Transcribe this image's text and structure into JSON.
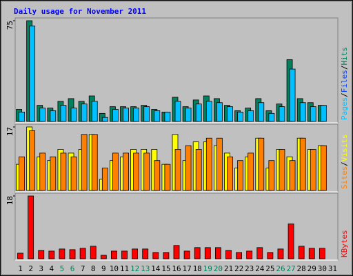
{
  "title": "Daily usage for November 2011",
  "legend_separator": "/",
  "chart_data": [
    {
      "type": "bar",
      "ylim": [
        0,
        75
      ],
      "yticks": [
        75
      ],
      "series": [
        {
          "name": "Hits",
          "color": "#00805c",
          "values": [
            9,
            75,
            12,
            10,
            15,
            17,
            15,
            19,
            6,
            11,
            11,
            11,
            12,
            9,
            7,
            18,
            11,
            16,
            19,
            17,
            12,
            8,
            10,
            17,
            8,
            13,
            46,
            17,
            14,
            12,
            null
          ]
        },
        {
          "name": "Files",
          "color": "#0040ff",
          "values": [
            null,
            null,
            null,
            null,
            null,
            null,
            null,
            null,
            null,
            null,
            null,
            null,
            null,
            null,
            null,
            null,
            null,
            null,
            null,
            null,
            null,
            null,
            null,
            null,
            null,
            null,
            null,
            null,
            null,
            null,
            null
          ]
        },
        {
          "name": "Pages",
          "color": "#00c0ff",
          "values": [
            7,
            71,
            10,
            8,
            12,
            10,
            13,
            15,
            3,
            9,
            10,
            10,
            11,
            8,
            7,
            15,
            10,
            13,
            15,
            14,
            11,
            7,
            8,
            14,
            6,
            11,
            39,
            14,
            11,
            12,
            null
          ]
        }
      ]
    },
    {
      "type": "bar",
      "ylim": [
        0,
        17
      ],
      "yticks": [
        17
      ],
      "series": [
        {
          "name": "Visits",
          "color": "#ffff00",
          "values": [
            7,
            17,
            9,
            8,
            11,
            10,
            11,
            15,
            3,
            8,
            9,
            11,
            11,
            11,
            7,
            15,
            8,
            13,
            13,
            12,
            10,
            6,
            9,
            14,
            6,
            11,
            9,
            14,
            11,
            12,
            null
          ]
        },
        {
          "name": "Sites",
          "color": "#ff8000",
          "values": [
            9,
            16,
            10,
            9,
            10,
            9,
            15,
            15,
            6,
            10,
            10,
            10,
            10,
            8,
            7,
            11,
            12,
            11,
            14,
            14,
            9,
            8,
            10,
            14,
            8,
            11,
            8,
            14,
            11,
            12,
            null
          ]
        }
      ]
    },
    {
      "type": "bar",
      "ylim": [
        0,
        18
      ],
      "yticks": [
        18
      ],
      "series": [
        {
          "name": "KBytes",
          "color": "#ff0000",
          "values": [
            1.6,
            18,
            2.4,
            2.2,
            2.8,
            2.6,
            3,
            3.6,
            1,
            2.2,
            2.2,
            2.8,
            2.8,
            1.8,
            1.8,
            3.8,
            2.2,
            3.2,
            3.2,
            3.2,
            2.4,
            1.8,
            2.2,
            3.2,
            1.8,
            2.8,
            10,
            3.6,
            3,
            3,
            null
          ]
        }
      ],
      "categories": [
        "1",
        "2",
        "3",
        "4",
        "5",
        "6",
        "7",
        "8",
        "9",
        "10",
        "11",
        "12",
        "13",
        "14",
        "15",
        "16",
        "17",
        "18",
        "19",
        "20",
        "21",
        "22",
        "23",
        "24",
        "25",
        "26",
        "27",
        "28",
        "29",
        "30",
        "31"
      ],
      "highlight_categories": [
        "5",
        "6",
        "12",
        "13",
        "19",
        "20",
        "26",
        "27"
      ],
      "highlight_color": "#00805c"
    }
  ]
}
